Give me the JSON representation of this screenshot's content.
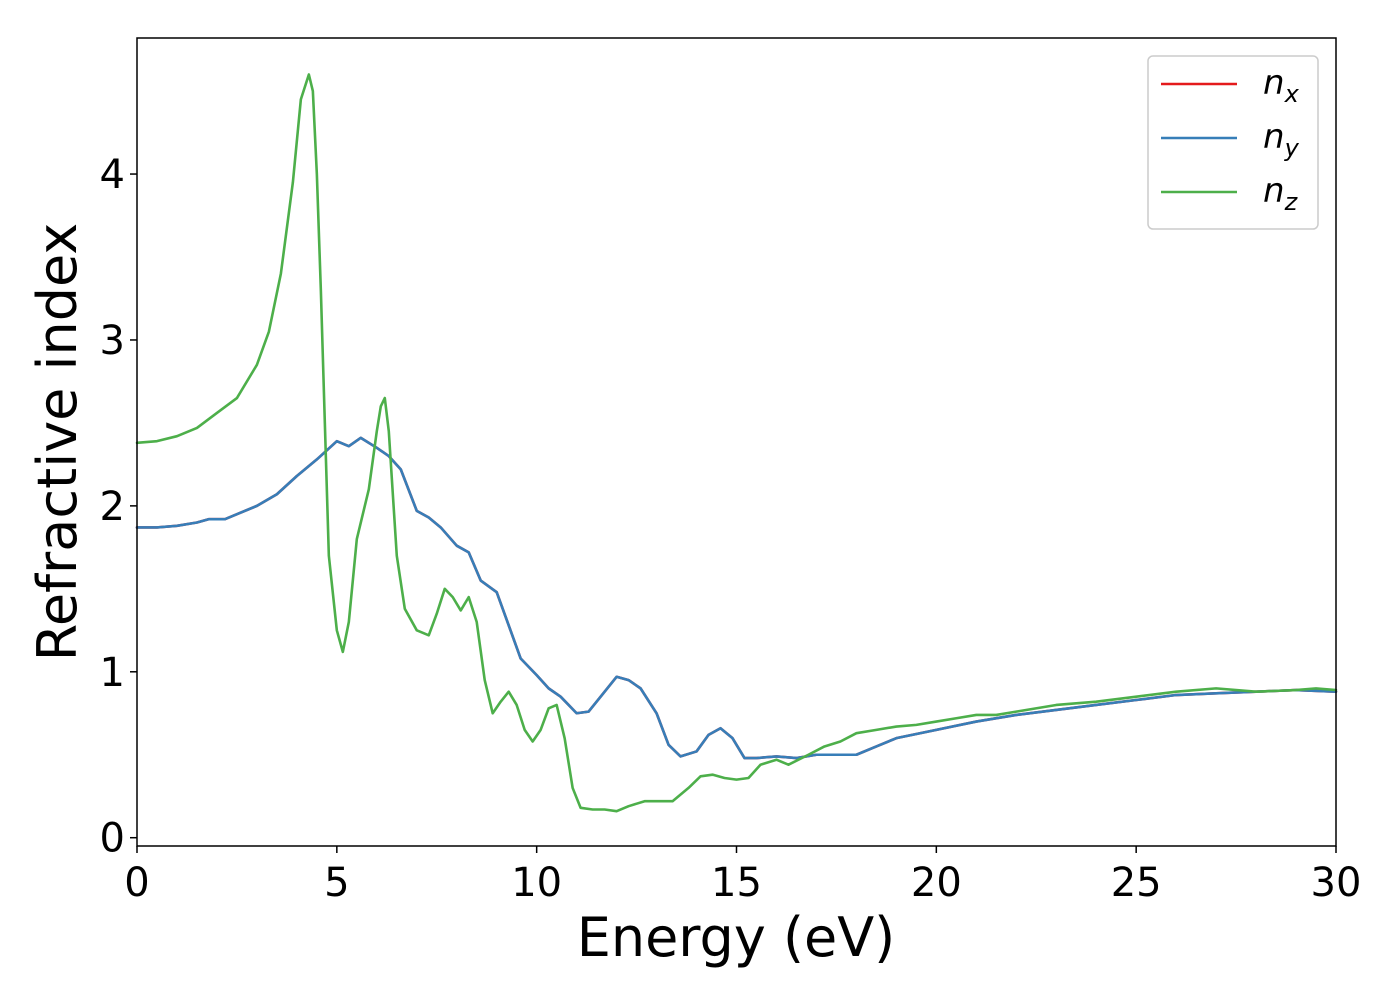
{
  "chart_data": {
    "type": "line",
    "xlabel": "Energy (eV)",
    "ylabel": "Refractive index",
    "xlim": [
      0,
      30
    ],
    "ylim": [
      -0.05,
      4.82
    ],
    "x_ticks": [
      "0",
      "5",
      "10",
      "15",
      "20",
      "25",
      "30"
    ],
    "y_ticks": [
      "0",
      "1",
      "2",
      "3",
      "4"
    ],
    "grid": false,
    "legend_position": "top-right",
    "series": [
      {
        "name": "n",
        "subscript": "x",
        "color": "#e41a1c",
        "x": [
          0,
          0.5,
          1,
          1.5,
          1.8,
          2.2,
          2.5,
          3,
          3.5,
          4,
          4.5,
          5,
          5.3,
          5.6,
          6,
          6.3,
          6.6,
          7,
          7.3,
          7.6,
          8,
          8.3,
          8.6,
          9,
          9.3,
          9.6,
          10,
          10.3,
          10.6,
          11,
          11.3,
          11.6,
          12,
          12.3,
          12.6,
          13,
          13.3,
          13.6,
          14,
          14.3,
          14.6,
          14.9,
          15.2,
          15.5,
          16,
          16.5,
          17,
          17.5,
          18,
          18.5,
          19,
          20,
          21,
          22,
          23,
          24,
          25,
          26,
          27,
          28,
          29,
          30
        ],
        "y": [
          1.87,
          1.87,
          1.88,
          1.9,
          1.92,
          1.92,
          1.95,
          2.0,
          2.07,
          2.18,
          2.28,
          2.39,
          2.36,
          2.41,
          2.35,
          2.3,
          2.22,
          1.97,
          1.93,
          1.87,
          1.76,
          1.72,
          1.55,
          1.48,
          1.28,
          1.08,
          0.98,
          0.9,
          0.85,
          0.75,
          0.76,
          0.85,
          0.97,
          0.95,
          0.9,
          0.75,
          0.56,
          0.49,
          0.52,
          0.62,
          0.66,
          0.6,
          0.48,
          0.48,
          0.49,
          0.48,
          0.5,
          0.5,
          0.5,
          0.55,
          0.6,
          0.65,
          0.7,
          0.74,
          0.77,
          0.8,
          0.83,
          0.86,
          0.87,
          0.88,
          0.89,
          0.88
        ]
      },
      {
        "name": "n",
        "subscript": "y",
        "color": "#377eb8",
        "x": [
          0,
          0.5,
          1,
          1.5,
          1.8,
          2.2,
          2.5,
          3,
          3.5,
          4,
          4.5,
          5,
          5.3,
          5.6,
          6,
          6.3,
          6.6,
          7,
          7.3,
          7.6,
          8,
          8.3,
          8.6,
          9,
          9.3,
          9.6,
          10,
          10.3,
          10.6,
          11,
          11.3,
          11.6,
          12,
          12.3,
          12.6,
          13,
          13.3,
          13.6,
          14,
          14.3,
          14.6,
          14.9,
          15.2,
          15.5,
          16,
          16.5,
          17,
          17.5,
          18,
          18.5,
          19,
          20,
          21,
          22,
          23,
          24,
          25,
          26,
          27,
          28,
          29,
          30
        ],
        "y": [
          1.87,
          1.87,
          1.88,
          1.9,
          1.92,
          1.92,
          1.95,
          2.0,
          2.07,
          2.18,
          2.28,
          2.39,
          2.36,
          2.41,
          2.35,
          2.3,
          2.22,
          1.97,
          1.93,
          1.87,
          1.76,
          1.72,
          1.55,
          1.48,
          1.28,
          1.08,
          0.98,
          0.9,
          0.85,
          0.75,
          0.76,
          0.85,
          0.97,
          0.95,
          0.9,
          0.75,
          0.56,
          0.49,
          0.52,
          0.62,
          0.66,
          0.6,
          0.48,
          0.48,
          0.49,
          0.48,
          0.5,
          0.5,
          0.5,
          0.55,
          0.6,
          0.65,
          0.7,
          0.74,
          0.77,
          0.8,
          0.83,
          0.86,
          0.87,
          0.88,
          0.89,
          0.88
        ]
      },
      {
        "name": "n",
        "subscript": "z",
        "color": "#4daf4a",
        "x": [
          0,
          0.5,
          1,
          1.5,
          2,
          2.5,
          3,
          3.3,
          3.6,
          3.9,
          4.1,
          4.3,
          4.4,
          4.5,
          4.6,
          4.7,
          4.8,
          5.0,
          5.15,
          5.3,
          5.5,
          5.8,
          6.0,
          6.1,
          6.2,
          6.3,
          6.5,
          6.7,
          7.0,
          7.3,
          7.5,
          7.7,
          7.9,
          8.1,
          8.3,
          8.5,
          8.7,
          8.9,
          9.1,
          9.3,
          9.5,
          9.7,
          9.9,
          10.1,
          10.3,
          10.5,
          10.7,
          10.9,
          11.1,
          11.4,
          11.7,
          12.0,
          12.3,
          12.7,
          13.0,
          13.4,
          13.8,
          14.1,
          14.4,
          14.7,
          15.0,
          15.3,
          15.6,
          16.0,
          16.3,
          16.8,
          17.2,
          17.6,
          18.0,
          18.5,
          19,
          19.5,
          20,
          20.5,
          21,
          21.5,
          22,
          23,
          24,
          25,
          26,
          27,
          28,
          29,
          29.5,
          30
        ],
        "y": [
          2.38,
          2.39,
          2.42,
          2.47,
          2.56,
          2.65,
          2.85,
          3.05,
          3.4,
          3.95,
          4.45,
          4.6,
          4.5,
          4.0,
          3.3,
          2.5,
          1.7,
          1.25,
          1.12,
          1.3,
          1.8,
          2.1,
          2.45,
          2.6,
          2.65,
          2.45,
          1.7,
          1.38,
          1.25,
          1.22,
          1.35,
          1.5,
          1.45,
          1.37,
          1.45,
          1.3,
          0.95,
          0.75,
          0.82,
          0.88,
          0.8,
          0.65,
          0.58,
          0.65,
          0.78,
          0.8,
          0.6,
          0.3,
          0.18,
          0.17,
          0.17,
          0.16,
          0.19,
          0.22,
          0.22,
          0.22,
          0.3,
          0.37,
          0.38,
          0.36,
          0.35,
          0.36,
          0.44,
          0.47,
          0.44,
          0.5,
          0.55,
          0.58,
          0.63,
          0.65,
          0.67,
          0.68,
          0.7,
          0.72,
          0.74,
          0.74,
          0.76,
          0.8,
          0.82,
          0.85,
          0.88,
          0.9,
          0.88,
          0.89,
          0.9,
          0.89
        ]
      }
    ]
  }
}
